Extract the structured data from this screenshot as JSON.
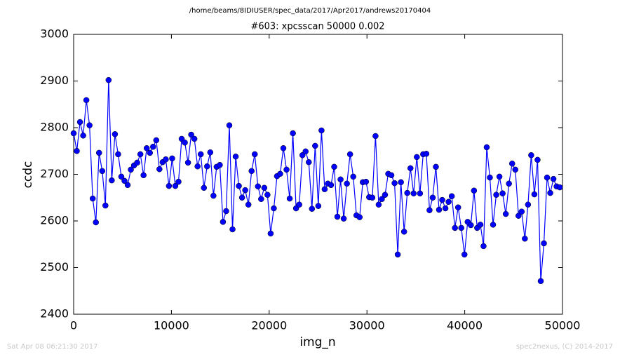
{
  "chart_data": {
    "type": "line",
    "path": "/home/beams/8IDIUSER/spec_data/2017/Apr2017/andrews20170404",
    "title": "#603: xpcsscan 50000 0.002",
    "xlabel": "img_n",
    "ylabel": "ccdc",
    "timestamp": "Sat Apr 08 06:21:30 2017",
    "credit": "spec2nexus, (C) 2014-2017",
    "xlim": [
      0,
      50000
    ],
    "ylim": [
      2400,
      3000
    ],
    "xticks": [
      0,
      10000,
      20000,
      30000,
      40000,
      50000
    ],
    "yticks": [
      2400,
      2500,
      2600,
      2700,
      2800,
      2900,
      3000
    ],
    "x": [
      0,
      325,
      650,
      975,
      1300,
      1625,
      1950,
      2275,
      2600,
      2925,
      3250,
      3575,
      3900,
      4225,
      4550,
      4875,
      5200,
      5525,
      5850,
      6175,
      6500,
      6825,
      7150,
      7475,
      7800,
      8125,
      8450,
      8775,
      9100,
      9425,
      9750,
      10075,
      10400,
      10725,
      11050,
      11375,
      11700,
      12025,
      12350,
      12675,
      13000,
      13325,
      13650,
      13975,
      14300,
      14625,
      14950,
      15275,
      15600,
      15925,
      16250,
      16575,
      16900,
      17225,
      17550,
      17875,
      18200,
      18525,
      18850,
      19175,
      19500,
      19825,
      20150,
      20475,
      20800,
      21125,
      21450,
      21775,
      22100,
      22425,
      22750,
      23075,
      23400,
      23725,
      24050,
      24375,
      24700,
      25025,
      25350,
      25675,
      26000,
      26325,
      26650,
      26975,
      27300,
      27625,
      27950,
      28275,
      28600,
      28925,
      29250,
      29575,
      29900,
      30225,
      30550,
      30875,
      31200,
      31525,
      31850,
      32175,
      32500,
      32825,
      33150,
      33475,
      33800,
      34125,
      34450,
      34775,
      35100,
      35425,
      35750,
      36075,
      36400,
      36725,
      37050,
      37375,
      37700,
      38025,
      38350,
      38675,
      39000,
      39325,
      39650,
      39975,
      40300,
      40625,
      40950,
      41275,
      41600,
      41925,
      42250,
      42575,
      42900,
      43225,
      43550,
      43875,
      44200,
      44525,
      44850,
      45175,
      45500,
      45825,
      46150,
      46475,
      46800,
      47125,
      47450,
      47775,
      48100,
      48425,
      48750,
      49075,
      49400,
      49725
    ],
    "series": [
      {
        "color": "#0000ff",
        "values": [
          2788,
          2750,
          2812,
          2783,
          2859,
          2805,
          2648,
          2597,
          2746,
          2707,
          2633,
          2902,
          2687,
          2786,
          2743,
          2695,
          2686,
          2677,
          2710,
          2719,
          2725,
          2743,
          2698,
          2756,
          2746,
          2759,
          2773,
          2711,
          2726,
          2732,
          2675,
          2734,
          2675,
          2684,
          2776,
          2768,
          2725,
          2785,
          2776,
          2717,
          2743,
          2671,
          2717,
          2747,
          2654,
          2716,
          2720,
          2598,
          2621,
          2805,
          2582,
          2738,
          2675,
          2650,
          2666,
          2635,
          2707,
          2743,
          2674,
          2647,
          2671,
          2656,
          2573,
          2627,
          2696,
          2701,
          2756,
          2710,
          2648,
          2788,
          2627,
          2635,
          2741,
          2749,
          2726,
          2626,
          2761,
          2632,
          2794,
          2668,
          2680,
          2677,
          2716,
          2609,
          2689,
          2605,
          2680,
          2743,
          2695,
          2612,
          2608,
          2683,
          2684,
          2651,
          2650,
          2782,
          2635,
          2647,
          2656,
          2701,
          2698,
          2681,
          2528,
          2683,
          2577,
          2660,
          2713,
          2659,
          2737,
          2659,
          2743,
          2744,
          2623,
          2650,
          2716,
          2624,
          2645,
          2627,
          2641,
          2653,
          2585,
          2629,
          2585,
          2528,
          2598,
          2591,
          2665,
          2585,
          2592,
          2546,
          2758,
          2693,
          2592,
          2656,
          2695,
          2659,
          2615,
          2680,
          2723,
          2710,
          2611,
          2620,
          2562,
          2635,
          2741,
          2657,
          2731,
          2471,
          2552,
          2693,
          2660,
          2690,
          2674,
          2672
        ]
      }
    ]
  }
}
